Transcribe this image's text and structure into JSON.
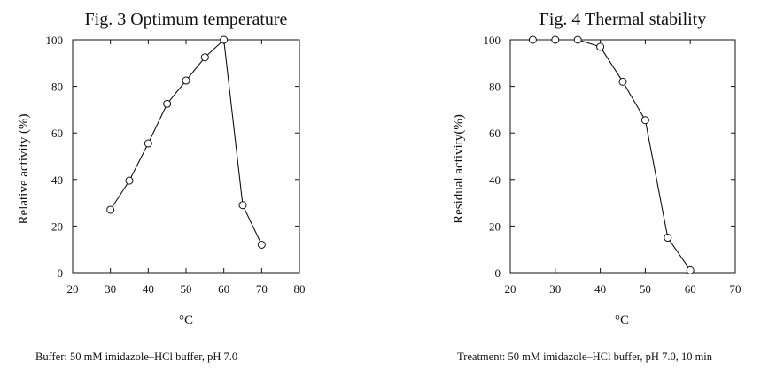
{
  "chart_data": [
    {
      "type": "line",
      "title": "Fig. 3   Optimum temperature",
      "xlabel": "°C",
      "ylabel": "Relative activity (%)",
      "xlim": [
        20,
        80
      ],
      "ylim": [
        0,
        100
      ],
      "xticks": [
        20,
        30,
        40,
        50,
        60,
        70,
        80
      ],
      "yticks": [
        0,
        20,
        40,
        60,
        80,
        100
      ],
      "grid": false,
      "marker": "open-circle",
      "series": [
        {
          "x": [
            30,
            35,
            40,
            45,
            50,
            55,
            60,
            65,
            70
          ],
          "y": [
            27,
            39.5,
            55.5,
            72.5,
            82.5,
            92.5,
            100,
            29,
            12
          ]
        }
      ],
      "note": "Buffer: 50 mM imidazole–HCl buffer, pH 7.0"
    },
    {
      "type": "line",
      "title": "Fig. 4   Thermal stability",
      "xlabel": "°C",
      "ylabel": "Residual activity(%)",
      "xlim": [
        20,
        70
      ],
      "ylim": [
        0,
        100
      ],
      "xticks": [
        20,
        30,
        40,
        50,
        60,
        70
      ],
      "yticks": [
        0,
        20,
        40,
        60,
        80,
        100
      ],
      "grid": false,
      "marker": "open-circle",
      "series": [
        {
          "x": [
            25,
            30,
            35,
            40,
            45,
            50,
            55,
            60
          ],
          "y": [
            100,
            100,
            100,
            97,
            82,
            65.5,
            15,
            1
          ]
        }
      ],
      "note": "Treatment:  50 mM imidazole–HCl buffer, pH 7.0, 10 min"
    }
  ]
}
